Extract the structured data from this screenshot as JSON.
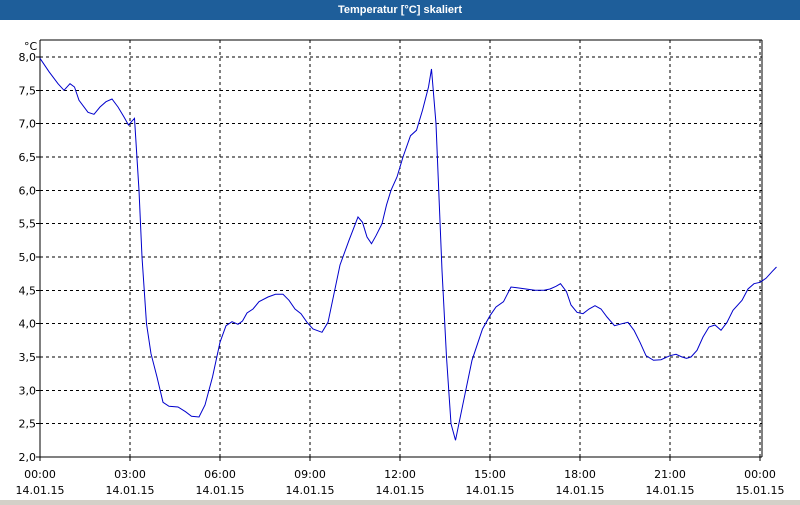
{
  "window": {
    "title": "Temperatur [°C] skaliert"
  },
  "colors": {
    "titlebar": "#1e5e9a",
    "line": "#0000cc",
    "grid": "#000000",
    "background": "#ffffff"
  },
  "chart_data": {
    "type": "line",
    "title": "Temperatur [°C] skaliert",
    "ylabel": "°C",
    "xlabel": "",
    "ylim": [
      2.0,
      8.0
    ],
    "xlim": [
      0,
      24
    ],
    "grid": true,
    "yticks": [
      "8,0",
      "7,5",
      "7,0",
      "6,5",
      "6,0",
      "5,5",
      "5,0",
      "4,5",
      "4,0",
      "3,5",
      "3,0",
      "2,5",
      "2,0"
    ],
    "ytick_values": [
      8.0,
      7.5,
      7.0,
      6.5,
      6.0,
      5.5,
      5.0,
      4.5,
      4.0,
      3.5,
      3.0,
      2.5,
      2.0
    ],
    "xticks": [
      {
        "time": "00:00",
        "date": "14.01.15"
      },
      {
        "time": "03:00",
        "date": "14.01.15"
      },
      {
        "time": "06:00",
        "date": "14.01.15"
      },
      {
        "time": "09:00",
        "date": "14.01.15"
      },
      {
        "time": "12:00",
        "date": "14.01.15"
      },
      {
        "time": "15:00",
        "date": "14.01.15"
      },
      {
        "time": "18:00",
        "date": "14.01.15"
      },
      {
        "time": "21:00",
        "date": "14.01.15"
      },
      {
        "time": "00:00",
        "date": "15.01.15"
      }
    ],
    "series": [
      {
        "points": [
          [
            0.0,
            7.98
          ],
          [
            0.3,
            7.78
          ],
          [
            0.6,
            7.6
          ],
          [
            0.8,
            7.5
          ],
          [
            1.0,
            7.6
          ],
          [
            1.15,
            7.55
          ],
          [
            1.3,
            7.35
          ],
          [
            1.6,
            7.17
          ],
          [
            1.8,
            7.14
          ],
          [
            2.0,
            7.25
          ],
          [
            2.2,
            7.33
          ],
          [
            2.4,
            7.37
          ],
          [
            2.6,
            7.25
          ],
          [
            2.8,
            7.1
          ],
          [
            2.95,
            6.98
          ],
          [
            3.15,
            7.08
          ],
          [
            3.3,
            6.0
          ],
          [
            3.4,
            5.0
          ],
          [
            3.55,
            4.0
          ],
          [
            3.7,
            3.55
          ],
          [
            3.9,
            3.2
          ],
          [
            4.1,
            2.82
          ],
          [
            4.3,
            2.76
          ],
          [
            4.6,
            2.75
          ],
          [
            4.85,
            2.68
          ],
          [
            5.05,
            2.61
          ],
          [
            5.3,
            2.6
          ],
          [
            5.5,
            2.78
          ],
          [
            5.75,
            3.2
          ],
          [
            6.0,
            3.72
          ],
          [
            6.2,
            3.97
          ],
          [
            6.4,
            4.03
          ],
          [
            6.6,
            3.99
          ],
          [
            6.75,
            4.04
          ],
          [
            6.9,
            4.16
          ],
          [
            7.1,
            4.22
          ],
          [
            7.3,
            4.33
          ],
          [
            7.6,
            4.4
          ],
          [
            7.85,
            4.44
          ],
          [
            8.1,
            4.44
          ],
          [
            8.3,
            4.35
          ],
          [
            8.5,
            4.22
          ],
          [
            8.7,
            4.15
          ],
          [
            8.9,
            4.02
          ],
          [
            9.1,
            3.92
          ],
          [
            9.4,
            3.87
          ],
          [
            9.6,
            4.02
          ],
          [
            9.8,
            4.45
          ],
          [
            10.0,
            4.88
          ],
          [
            10.3,
            5.25
          ],
          [
            10.6,
            5.6
          ],
          [
            10.75,
            5.52
          ],
          [
            10.9,
            5.3
          ],
          [
            11.05,
            5.2
          ],
          [
            11.2,
            5.32
          ],
          [
            11.4,
            5.5
          ],
          [
            11.55,
            5.78
          ],
          [
            11.7,
            6.0
          ],
          [
            11.9,
            6.2
          ],
          [
            12.1,
            6.5
          ],
          [
            12.35,
            6.82
          ],
          [
            12.55,
            6.9
          ],
          [
            12.75,
            7.2
          ],
          [
            12.95,
            7.55
          ],
          [
            13.05,
            7.82
          ],
          [
            13.2,
            7.0
          ],
          [
            13.4,
            4.8
          ],
          [
            13.55,
            3.5
          ],
          [
            13.7,
            2.5
          ],
          [
            13.85,
            2.25
          ],
          [
            14.1,
            2.8
          ],
          [
            14.4,
            3.45
          ],
          [
            14.75,
            3.92
          ],
          [
            15.0,
            4.12
          ],
          [
            15.2,
            4.25
          ],
          [
            15.45,
            4.33
          ],
          [
            15.7,
            4.55
          ],
          [
            15.9,
            4.54
          ],
          [
            16.2,
            4.52
          ],
          [
            16.5,
            4.5
          ],
          [
            16.8,
            4.5
          ],
          [
            17.0,
            4.52
          ],
          [
            17.2,
            4.56
          ],
          [
            17.35,
            4.6
          ],
          [
            17.55,
            4.48
          ],
          [
            17.7,
            4.28
          ],
          [
            17.9,
            4.17
          ],
          [
            18.1,
            4.15
          ],
          [
            18.3,
            4.22
          ],
          [
            18.5,
            4.27
          ],
          [
            18.7,
            4.22
          ],
          [
            18.9,
            4.1
          ],
          [
            19.15,
            3.97
          ],
          [
            19.4,
            4.0
          ],
          [
            19.6,
            4.02
          ],
          [
            19.8,
            3.9
          ],
          [
            20.0,
            3.72
          ],
          [
            20.2,
            3.52
          ],
          [
            20.45,
            3.45
          ],
          [
            20.7,
            3.46
          ],
          [
            21.0,
            3.52
          ],
          [
            21.2,
            3.54
          ],
          [
            21.4,
            3.5
          ],
          [
            21.55,
            3.48
          ],
          [
            21.7,
            3.5
          ],
          [
            21.9,
            3.6
          ],
          [
            22.1,
            3.8
          ],
          [
            22.3,
            3.95
          ],
          [
            22.5,
            3.98
          ],
          [
            22.7,
            3.9
          ],
          [
            22.9,
            4.02
          ],
          [
            23.1,
            4.2
          ],
          [
            23.4,
            4.35
          ],
          [
            23.6,
            4.52
          ],
          [
            23.8,
            4.6
          ],
          [
            24.0,
            4.62
          ],
          [
            24.2,
            4.68
          ],
          [
            24.4,
            4.78
          ],
          [
            24.55,
            4.85
          ]
        ]
      }
    ]
  }
}
